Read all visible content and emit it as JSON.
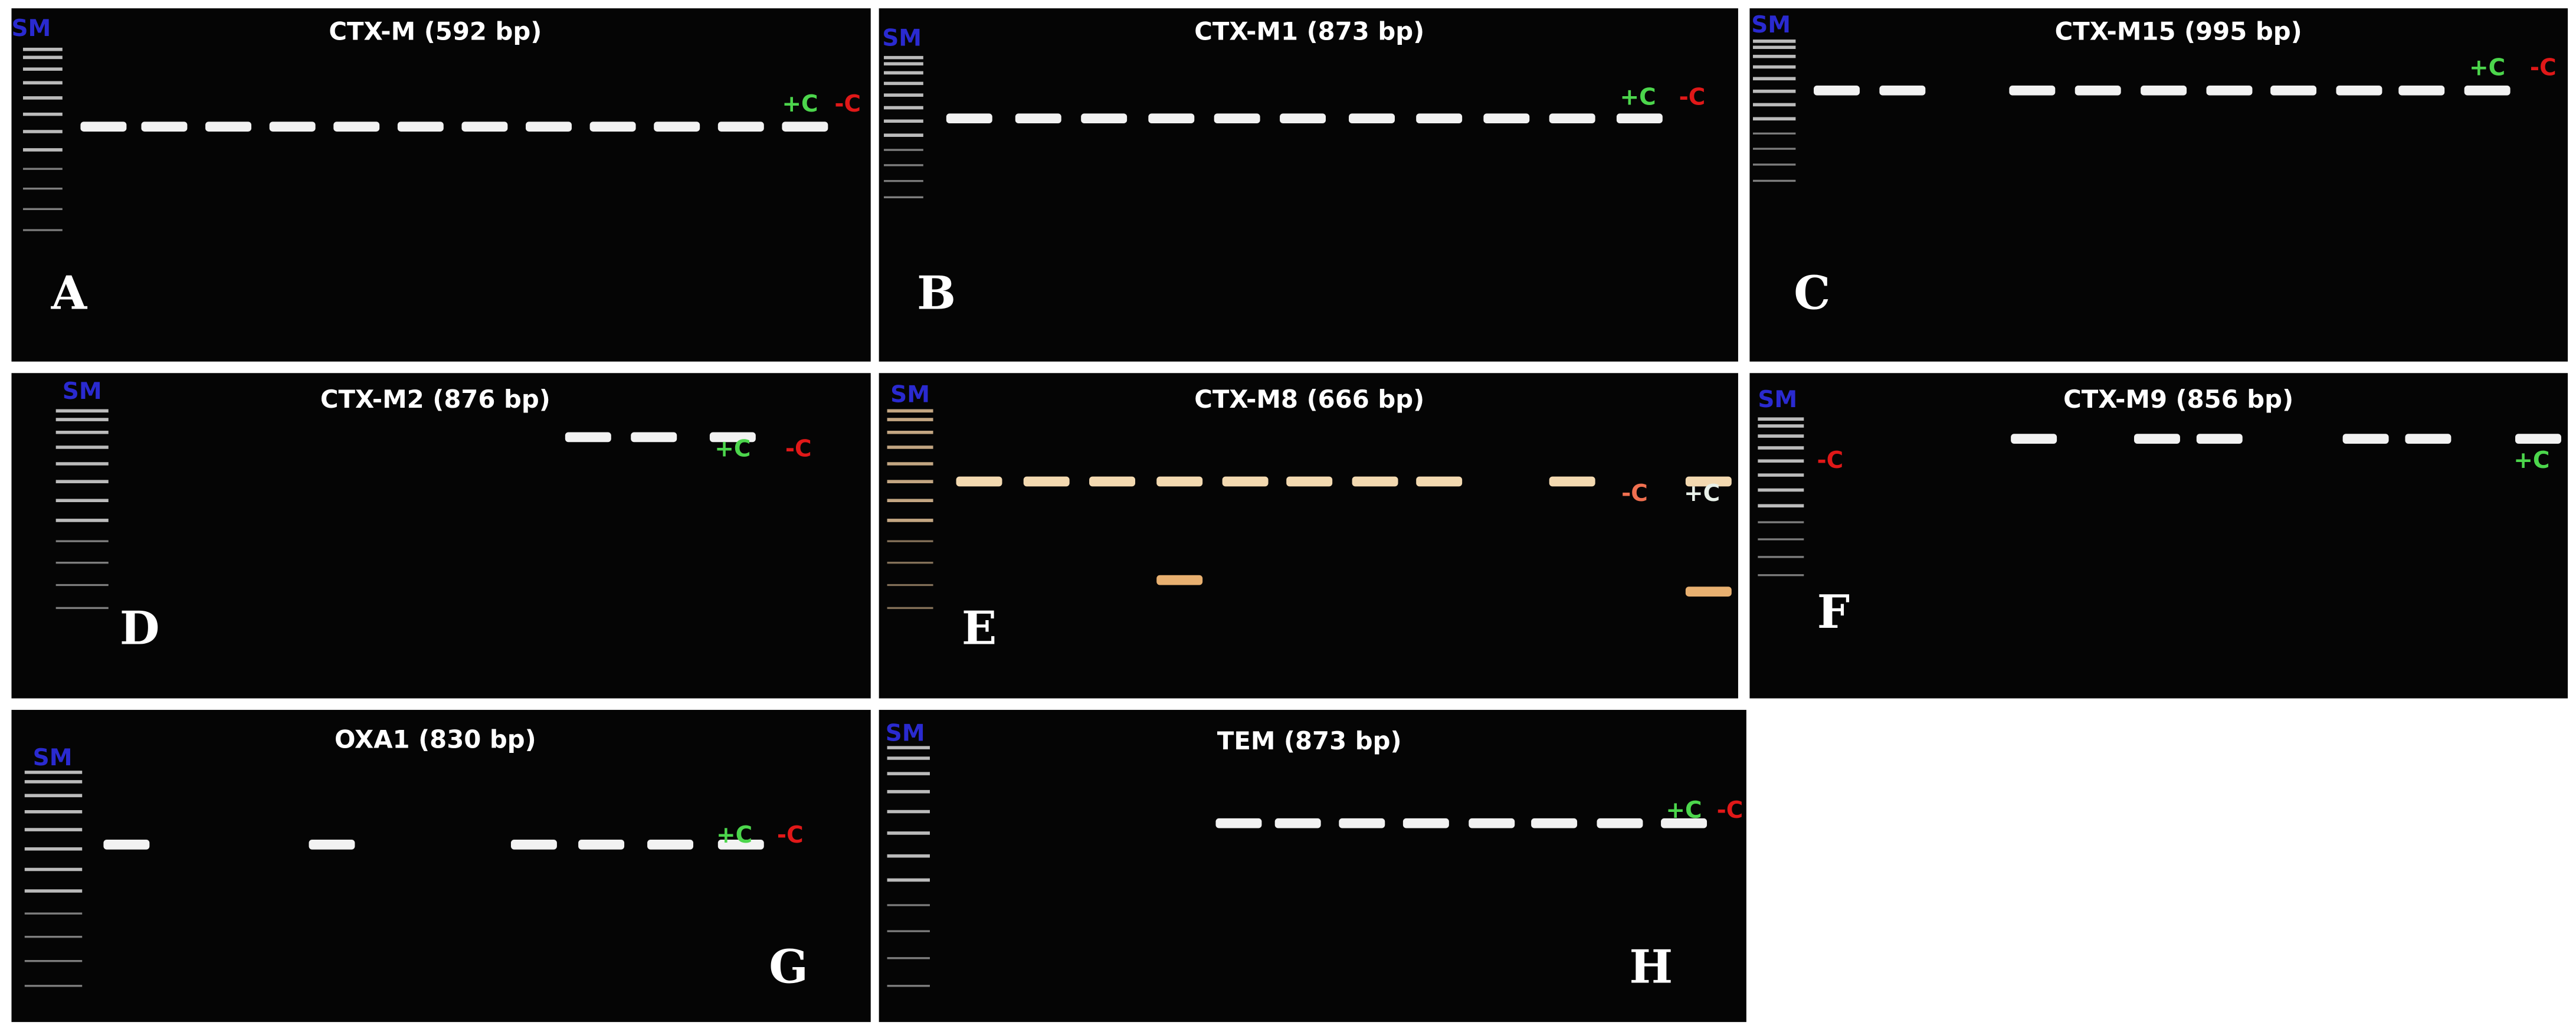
{
  "panels": [
    {
      "title": "CTX-M (592 bp)",
      "letter": "A",
      "sm": "SM",
      "pos": "+C",
      "neg": "-C"
    },
    {
      "title": "CTX-M1 (873 bp)",
      "letter": "B",
      "sm": "SM",
      "pos": "+C",
      "neg": "-C"
    },
    {
      "title": "CTX-M15 (995 bp)",
      "letter": "C",
      "sm": "SM",
      "pos": "+C",
      "neg": "-C"
    },
    {
      "title": "CTX-M2 (876 bp)",
      "letter": "D",
      "sm": "SM",
      "pos": "+C",
      "neg": "-C"
    },
    {
      "title": "CTX-M8 (666 bp)",
      "letter": "E",
      "sm": "SM",
      "pos": "+C",
      "neg": "-C"
    },
    {
      "title": "CTX-M9 (856 bp)",
      "letter": "F",
      "sm": "SM",
      "pos": "+C",
      "neg": "-C"
    },
    {
      "title": "OXA1 (830 bp)",
      "letter": "G",
      "sm": "SM",
      "pos": "+C",
      "neg": "-C"
    },
    {
      "title": "TEM (873 bp)",
      "letter": "H",
      "sm": "SM",
      "pos": "+C",
      "neg": "-C"
    }
  ]
}
